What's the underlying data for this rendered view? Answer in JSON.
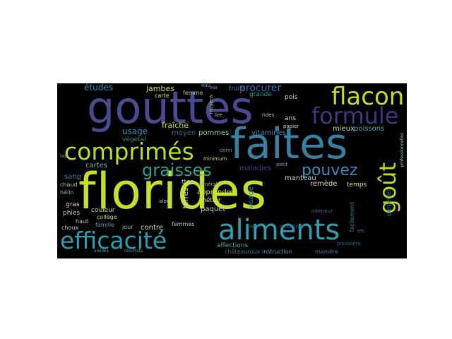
{
  "word_cloud": {
    "background": "#000000",
    "palette": {
      "lime": "#b5de2b",
      "yellowgreen": "#d8e219",
      "green": "#6ccd5a",
      "teal": "#2a9a8a",
      "blue": "#3e74a0",
      "steel": "#4a80a8",
      "indigo": "#46337e",
      "purple": "#482576",
      "cyan": "#35b779"
    },
    "words": [
      {
        "text": "florides",
        "color": "#c6e02a"
      },
      {
        "text": "gouttes",
        "color": "#4a4a91"
      },
      {
        "text": "faites",
        "color": "#3a7ea0"
      },
      {
        "text": "aliments",
        "color": "#2fa0b0"
      },
      {
        "text": "comprimés",
        "color": "#b8de29"
      },
      {
        "text": "efficacité",
        "color": "#29a0b1"
      },
      {
        "text": "flacon",
        "color": "#c2df23"
      },
      {
        "text": "formule",
        "color": "#46337e"
      },
      {
        "text": "graisses",
        "color": "#2ba18e"
      },
      {
        "text": "pouvez",
        "color": "#3b8bb8"
      },
      {
        "text": "goût",
        "color": "#b5de2b"
      },
      {
        "text": "procurer",
        "color": "#3d6bb0"
      },
      {
        "text": "études",
        "color": "#3b8fb0"
      },
      {
        "text": "usage",
        "color": "#3a8cb3"
      },
      {
        "text": "moyen",
        "color": "#2a6a8a"
      },
      {
        "text": "végétal",
        "color": "#2f8a6a"
      },
      {
        "text": "cartes",
        "color": "#6fbfa0"
      },
      {
        "text": "sang",
        "color": "#3a7ea0"
      },
      {
        "text": "pommes",
        "color": "#8fd3a0"
      },
      {
        "text": "jambes",
        "color": "#d0e060"
      },
      {
        "text": "fraîche",
        "color": "#d8e219"
      },
      {
        "text": "carte",
        "color": "#c8e07a"
      },
      {
        "text": "femme",
        "color": "#a0d8a8"
      },
      {
        "text": "fruits",
        "color": "#4a80a8"
      },
      {
        "text": "grande",
        "color": "#2a9a8a"
      },
      {
        "text": "pois",
        "color": "#b0d8c0"
      },
      {
        "text": "ans",
        "color": "#c0e0b0"
      },
      {
        "text": "mieux",
        "color": "#a8d8c0"
      },
      {
        "text": "poissons",
        "color": "#5aa8b8"
      },
      {
        "text": "vitamines",
        "color": "#3a8ab0"
      },
      {
        "text": "temps",
        "color": "#c6e07a"
      },
      {
        "text": "remède",
        "color": "#c8e0b0"
      },
      {
        "text": "manteau",
        "color": "#b8d8c8"
      },
      {
        "text": "maladies",
        "color": "#4a3a90"
      },
      {
        "text": "visage",
        "color": "#3a8ab0"
      },
      {
        "text": "apprendre",
        "color": "#c8e060"
      },
      {
        "text": "métier",
        "color": "#d0e080"
      },
      {
        "text": "affections",
        "color": "#4aa8a0"
      },
      {
        "text": "paquet",
        "color": "#c0d8c8"
      },
      {
        "text": "terres",
        "color": "#c8e0c0"
      },
      {
        "text": "contre",
        "color": "#d8e0a0"
      },
      {
        "text": "femmes",
        "color": "#a8d0c0"
      },
      {
        "text": "jour",
        "color": "#7ac0b0"
      },
      {
        "text": "famille",
        "color": "#5aa0b0"
      },
      {
        "text": "couleur",
        "color": "#c0d8b0"
      },
      {
        "text": "collège",
        "color": "#a8d8b0"
      },
      {
        "text": "gras",
        "color": "#c0d8c0"
      },
      {
        "text": "phies",
        "color": "#b8d0d0"
      },
      {
        "text": "haut",
        "color": "#b0d0c8"
      },
      {
        "text": "choux",
        "color": "#c0d0c0"
      },
      {
        "text": "chaud",
        "color": "#a8c8b8"
      },
      {
        "text": "hélin",
        "color": "#7ab0c0"
      },
      {
        "text": "ttes",
        "color": "#b8d8c0"
      },
      {
        "text": "générale",
        "color": "#8ab8a8"
      },
      {
        "text": "châteauroux",
        "color": "#3a6a90"
      },
      {
        "text": "instruction",
        "color": "#4aa0b0"
      },
      {
        "text": "manière",
        "color": "#4a7a9a"
      },
      {
        "text": "etc",
        "color": "#3a7090"
      },
      {
        "text": "intérieur",
        "color": "#3a6a90"
      },
      {
        "text": "facilement",
        "color": "#2a8a9a"
      },
      {
        "text": "petit",
        "color": "#6aa0b8"
      },
      {
        "text": "demi",
        "color": "#6a90b0"
      },
      {
        "text": "lire",
        "color": "#a8c8b8"
      },
      {
        "text": "minimum",
        "color": "#b8e060"
      },
      {
        "text": "moyens",
        "color": "#a8d060"
      },
      {
        "text": "eau",
        "color": "#6aa0c0"
      },
      {
        "text": "voir",
        "color": "#7ab0c0"
      },
      {
        "text": "papier",
        "color": "#c8e0b0"
      },
      {
        "text": "alpes",
        "color": "#a8c8c0"
      },
      {
        "text": "perpétrer",
        "color": "#2a8a9a"
      },
      {
        "text": "professionnelles",
        "color": "#a8d0c0"
      },
      {
        "text": "paires",
        "color": "#3a7090"
      },
      {
        "text": "modernes",
        "color": "#3a6a90"
      },
      {
        "text": "poussière",
        "color": "#3a5a80"
      },
      {
        "text": "résultats",
        "color": "#6a90a8"
      },
      {
        "text": "vieilles",
        "color": "#6aa0b0"
      },
      {
        "text": "rides",
        "color": "#a8c8c0"
      },
      {
        "text": "lab",
        "color": "#7a9ab0"
      }
    ]
  }
}
